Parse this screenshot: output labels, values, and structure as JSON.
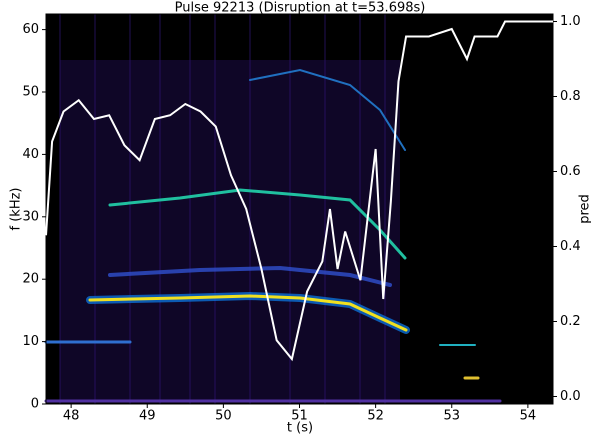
{
  "chart_data": {
    "type": "line",
    "title": "Pulse 92213 (Disruption at t=53.698s)",
    "xlabel": "t (s)",
    "ylabel": "f (kHz)",
    "y2label": "pred",
    "xlim": [
      47.67,
      54.33
    ],
    "xticks": [
      48,
      49,
      50,
      51,
      52,
      53,
      54
    ],
    "ylim": [
      0,
      62.5
    ],
    "yticks": [
      0,
      10,
      20,
      30,
      40,
      50,
      60
    ],
    "y2lim": [
      -0.02,
      1.02
    ],
    "y2ticks": [
      {
        "value": 0,
        "label": "0.0"
      },
      {
        "value": 0.2,
        "label": "0.2"
      },
      {
        "value": 0.4,
        "label": "0.4"
      },
      {
        "value": 0.6,
        "label": "0.6"
      },
      {
        "value": 0.8,
        "label": "0.8"
      },
      {
        "value": 1,
        "label": "1.0"
      }
    ],
    "background": "#000000",
    "series": [
      {
        "color": "#ffffff",
        "axis": "y2",
        "x": [
          47.67,
          47.75,
          47.9,
          48.1,
          48.3,
          48.5,
          48.7,
          48.9,
          49.1,
          49.3,
          49.5,
          49.7,
          49.9,
          50.1,
          50.3,
          50.5,
          50.7,
          50.9,
          51.1,
          51.3,
          51.4,
          51.5,
          51.6,
          51.8,
          52.0,
          52.1,
          52.2,
          52.3,
          52.4,
          52.7,
          53.0,
          53.2,
          53.3,
          53.6,
          53.7,
          54.33
        ],
        "values": [
          0.43,
          0.68,
          0.76,
          0.79,
          0.74,
          0.75,
          0.67,
          0.63,
          0.74,
          0.75,
          0.78,
          0.76,
          0.72,
          0.59,
          0.5,
          0.34,
          0.15,
          0.1,
          0.28,
          0.36,
          0.5,
          0.34,
          0.44,
          0.31,
          0.66,
          0.26,
          0.52,
          0.84,
          0.96,
          0.96,
          0.98,
          0.9,
          0.96,
          0.96,
          1.0,
          1.0
        ]
      }
    ]
  }
}
